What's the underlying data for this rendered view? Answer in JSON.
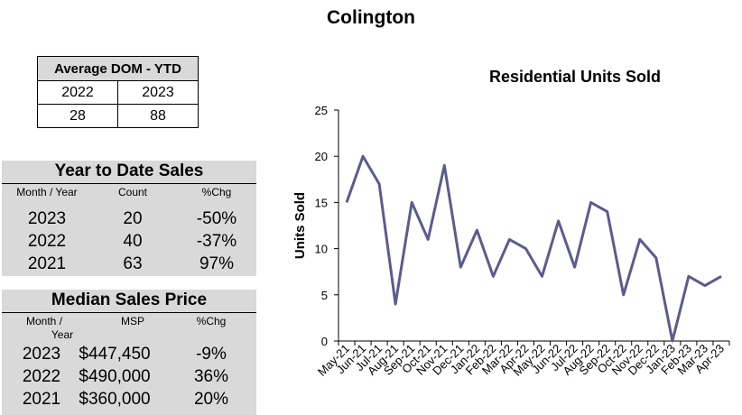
{
  "page": {
    "title": "Colington"
  },
  "dom_table": {
    "title": "Average DOM - YTD",
    "years": [
      "2022",
      "2023"
    ],
    "values": [
      "28",
      "88"
    ]
  },
  "ytd_sales": {
    "title": "Year to Date Sales",
    "headers": [
      "Month / Year",
      "Count",
      "%Chg"
    ],
    "rows": [
      {
        "year": "2023",
        "count": "20",
        "chg": "-50%"
      },
      {
        "year": "2022",
        "count": "40",
        "chg": "-37%"
      },
      {
        "year": "2021",
        "count": "63",
        "chg": "97%"
      }
    ]
  },
  "median_price": {
    "title": "Median Sales Price",
    "headers": [
      "Month /",
      "Year",
      "MSP",
      "%Chg"
    ],
    "rows": [
      {
        "year": "2023",
        "msp": "$447,450",
        "chg": "-9%"
      },
      {
        "year": "2022",
        "msp": "$490,000",
        "chg": "36%"
      },
      {
        "year": "2021",
        "msp": "$360,000",
        "chg": "20%"
      }
    ]
  },
  "colors": {
    "line": "#5b5b8f",
    "panel": "#d9d9d9"
  },
  "chart_data": {
    "type": "line",
    "title": "Residential Units Sold",
    "xlabel": "",
    "ylabel": "Units Sold",
    "ylim": [
      0,
      25
    ],
    "yticks": [
      0,
      5,
      10,
      15,
      20,
      25
    ],
    "grid": false,
    "categories": [
      "May-21",
      "Jun-21",
      "Jul-21",
      "Aug-21",
      "Sep-21",
      "Oct-21",
      "Nov-21",
      "Dec-21",
      "Jan-22",
      "Feb-22",
      "Mar-22",
      "Apr-22",
      "May-22",
      "Jun-22",
      "Jul-22",
      "Aug-22",
      "Sep-22",
      "Oct-22",
      "Nov-22",
      "Dec-22",
      "Jan-23",
      "Feb-23",
      "Mar-23",
      "Apr-23"
    ],
    "series": [
      {
        "name": "Residential Units Sold",
        "values": [
          15,
          20,
          17,
          4,
          15,
          11,
          19,
          8,
          12,
          7,
          11,
          10,
          7,
          13,
          8,
          15,
          14,
          5,
          11,
          9,
          0,
          7,
          6,
          7
        ]
      }
    ]
  }
}
